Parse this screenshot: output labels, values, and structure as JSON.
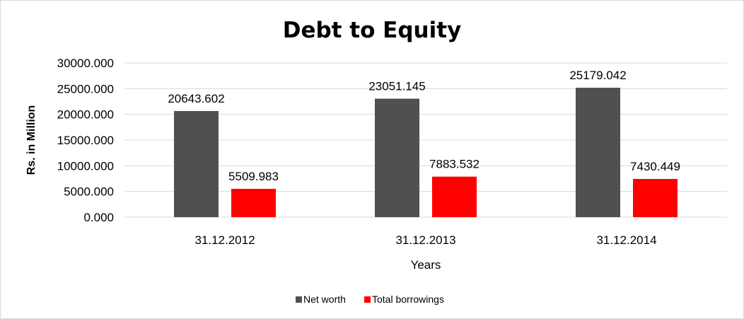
{
  "chart_data": {
    "type": "bar",
    "title": "Debt to Equity",
    "xlabel": "Years",
    "ylabel": "Rs. in Million",
    "categories": [
      "31.12.2012",
      "31.12.2013",
      "31.12.2014"
    ],
    "series": [
      {
        "name": "Net worth",
        "color": "#505050",
        "values": [
          20643.602,
          23051.145,
          25179.042
        ],
        "labels": [
          "20643.602",
          "23051.145",
          "25179.042"
        ]
      },
      {
        "name": "Total borrowings",
        "color": "#ff0000",
        "values": [
          5509.983,
          7883.532,
          7430.449
        ],
        "labels": [
          "5509.983",
          "7883.532",
          "7430.449"
        ]
      }
    ],
    "ylim": [
      0,
      30000
    ],
    "yticks": [
      "0.000",
      "5000.000",
      "10000.000",
      "15000.000",
      "20000.000",
      "25000.000",
      "30000.000"
    ],
    "grid": true,
    "legend": "bottom"
  }
}
